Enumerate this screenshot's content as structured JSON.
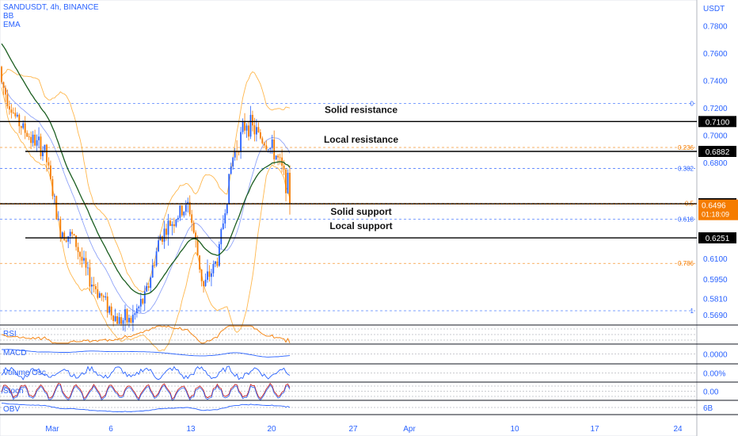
{
  "header": {
    "symbol_line": "SANDUSDT, 4h, BINANCE",
    "indicators": [
      "BB",
      "EMA"
    ],
    "currency": "USDT"
  },
  "colors": {
    "up": "#2962ff",
    "down": "#f57c00",
    "ema": "#1b5e20",
    "bb": "#ffb74d",
    "bb_mid": "#90a4f8",
    "fib_blue": "#2962ff",
    "fib_orange": "#f57c00",
    "level_line": "#000000",
    "price_tag": "#f57c00"
  },
  "chart_data": {
    "type": "candlestick",
    "ylim": [
      0.5615,
      0.7987
    ],
    "y_ticks": [
      "0.7800",
      "0.7600",
      "0.7400",
      "0.7200",
      "0.7000",
      "0.6800",
      "0.6100",
      "0.5950",
      "0.5810",
      "0.5690"
    ],
    "x_ticks": [
      "Mar",
      "6",
      "13",
      "20",
      "27",
      "Apr",
      "10",
      "17",
      "24"
    ],
    "fib_levels": [
      {
        "label": "0",
        "price": 0.7232,
        "color": "blue"
      },
      {
        "label": "0.236",
        "price": 0.6911,
        "color": "orange"
      },
      {
        "label": "0.382",
        "price": 0.6758,
        "color": "blue"
      },
      {
        "label": "0.5",
        "price": 0.6503,
        "color": "orange"
      },
      {
        "label": "0.618",
        "price": 0.6388,
        "color": "blue"
      },
      {
        "label": "0.786",
        "price": 0.6065,
        "color": "orange"
      },
      {
        "label": "1",
        "price": 0.5719,
        "color": "blue"
      }
    ],
    "levels": [
      {
        "label": "Solid resistance",
        "price": 0.71,
        "tag": "0.7100"
      },
      {
        "label": "Local resistance",
        "price": 0.6882,
        "tag": "0.6882"
      },
      {
        "label": "Solid support",
        "price": 0.65,
        "tag": "0.6500"
      },
      {
        "label": "Local support",
        "price": 0.6251,
        "tag": "0.6251"
      }
    ],
    "last_price": {
      "value": "0.6496",
      "countdown": "01:18:09"
    },
    "price_path": [
      [
        0.75,
        0.726
      ],
      [
        0.714,
        0.71
      ],
      [
        0.69,
        0.706
      ],
      [
        0.681,
        0.696
      ],
      [
        0.63,
        0.633
      ],
      [
        0.623,
        0.627
      ],
      [
        0.598,
        0.595
      ],
      [
        0.58,
        0.583
      ],
      [
        0.568,
        0.563
      ],
      [
        0.5655,
        0.564
      ],
      [
        0.575,
        0.59
      ],
      [
        0.6,
        0.652
      ],
      [
        0.63,
        0.648
      ],
      [
        0.658,
        0.64
      ],
      [
        0.59,
        0.588
      ],
      [
        0.585,
        0.635
      ],
      [
        0.645,
        0.72
      ],
      [
        0.728,
        0.692
      ],
      [
        0.7,
        0.696
      ],
      [
        0.698,
        0.675
      ],
      [
        0.67,
        0.6496
      ]
    ],
    "panes": [
      {
        "name": "RSI",
        "scale_label": ""
      },
      {
        "name": "MACD",
        "scale_label": "0.0000"
      },
      {
        "name": "Volume Osc",
        "scale_label": "0.00%"
      },
      {
        "name": "Stoch",
        "scale_label": "0.00"
      },
      {
        "name": "OBV",
        "scale_label": "6B"
      }
    ]
  }
}
